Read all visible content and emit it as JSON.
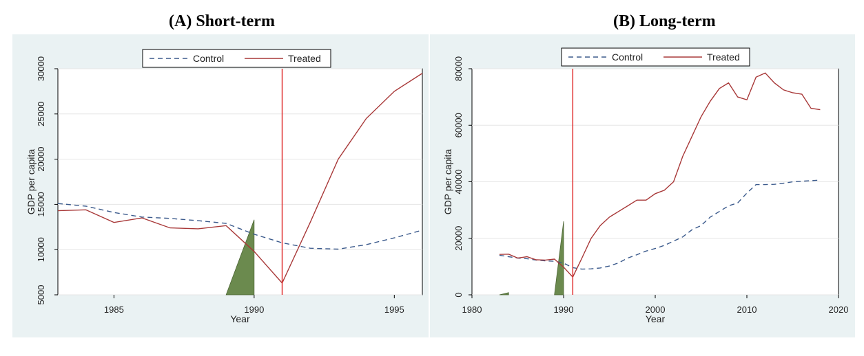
{
  "chart_data": [
    {
      "panel_title": "(A)  Short-term",
      "type": "line",
      "xlabel": "Year",
      "ylabel": "GDP per capita",
      "xlim": [
        1983,
        1996
      ],
      "ylim": [
        5000,
        30000
      ],
      "xticks": [
        "1985",
        "1990",
        "1995"
      ],
      "yticks": [
        "5000",
        "10000",
        "15000",
        "20000",
        "25000",
        "30000"
      ],
      "legend": {
        "placement": "top-center"
      },
      "series": [
        {
          "name": "Control",
          "style": "dashed",
          "color": "#3b5a8c",
          "x": [
            1983,
            1984,
            1985,
            1986,
            1987,
            1988,
            1989,
            1990,
            1991,
            1992,
            1993,
            1994,
            1995,
            1996
          ],
          "y": [
            15100,
            14800,
            14100,
            13600,
            13450,
            13200,
            12900,
            11700,
            10750,
            10150,
            10050,
            10550,
            11300,
            12150
          ]
        },
        {
          "name": "Treated",
          "style": "solid",
          "color": "#a83838",
          "x": [
            1983,
            1984,
            1985,
            1986,
            1987,
            1988,
            1989,
            1990,
            1991,
            1992,
            1993,
            1994,
            1995,
            1996
          ],
          "y": [
            14300,
            14400,
            13000,
            13500,
            12400,
            12300,
            12650,
            9800,
            6300,
            13000,
            20000,
            24500,
            27500,
            29500
          ]
        }
      ],
      "vline": {
        "x": 1991,
        "color": "#e03030"
      },
      "triangles": [
        {
          "x": [
            1989,
            1990
          ],
          "y_base": 5000,
          "y_top": 13300,
          "color": "#6b8a4e"
        }
      ]
    },
    {
      "panel_title": "(B) Long-term",
      "type": "line",
      "xlabel": "Year",
      "ylabel": "GDP per capita",
      "xlim": [
        1980,
        2020
      ],
      "ylim": [
        0,
        80000
      ],
      "xticks": [
        "1980",
        "1990",
        "2000",
        "2010",
        "2020"
      ],
      "yticks": [
        "0",
        "20000",
        "40000",
        "60000",
        "80000"
      ],
      "legend": {
        "placement": "top-center"
      },
      "series": [
        {
          "name": "Control",
          "style": "dashed",
          "color": "#3b5a8c",
          "x": [
            1983,
            1984,
            1985,
            1986,
            1987,
            1988,
            1989,
            1990,
            1991,
            1992,
            1993,
            1994,
            1995,
            1996,
            1997,
            1998,
            1999,
            2000,
            2001,
            2002,
            2003,
            2004,
            2005,
            2006,
            2007,
            2008,
            2009,
            2010,
            2011,
            2012,
            2013,
            2014,
            2015,
            2016,
            2017,
            2018
          ],
          "y": [
            14000,
            13500,
            13000,
            12800,
            12300,
            12000,
            11900,
            11200,
            9600,
            9100,
            9200,
            9500,
            10200,
            11300,
            13000,
            14200,
            15500,
            16400,
            17500,
            19000,
            20500,
            23000,
            24500,
            27500,
            29500,
            31500,
            32500,
            36000,
            39000,
            39000,
            39100,
            39500,
            40000,
            40200,
            40400,
            40600
          ]
        },
        {
          "name": "Treated",
          "style": "solid",
          "color": "#a83838",
          "x": [
            1983,
            1984,
            1985,
            1986,
            1987,
            1988,
            1989,
            1990,
            1991,
            1992,
            1993,
            1994,
            1995,
            1996,
            1997,
            1998,
            1999,
            2000,
            2001,
            2002,
            2003,
            2004,
            2005,
            2006,
            2007,
            2008,
            2009,
            2010,
            2011,
            2012,
            2013,
            2014,
            2015,
            2016,
            2017,
            2018
          ],
          "y": [
            14300,
            14400,
            13000,
            13500,
            12400,
            12300,
            12650,
            9800,
            6300,
            13000,
            20000,
            24500,
            27500,
            29500,
            31500,
            33500,
            33500,
            35800,
            37000,
            40000,
            49000,
            56000,
            63000,
            68500,
            73000,
            75000,
            70000,
            69000,
            77000,
            78500,
            75000,
            72500,
            71500,
            71000,
            66000,
            65500
          ]
        }
      ],
      "vline": {
        "x": 1991,
        "color": "#e03030"
      },
      "triangles": [
        {
          "x": [
            1989,
            1990
          ],
          "y_base": 0,
          "y_top": 26000,
          "color": "#6b8a4e"
        },
        {
          "x": [
            1983,
            1984
          ],
          "y_base": 0,
          "y_top": 800,
          "color": "#6b8a4e"
        }
      ]
    }
  ]
}
